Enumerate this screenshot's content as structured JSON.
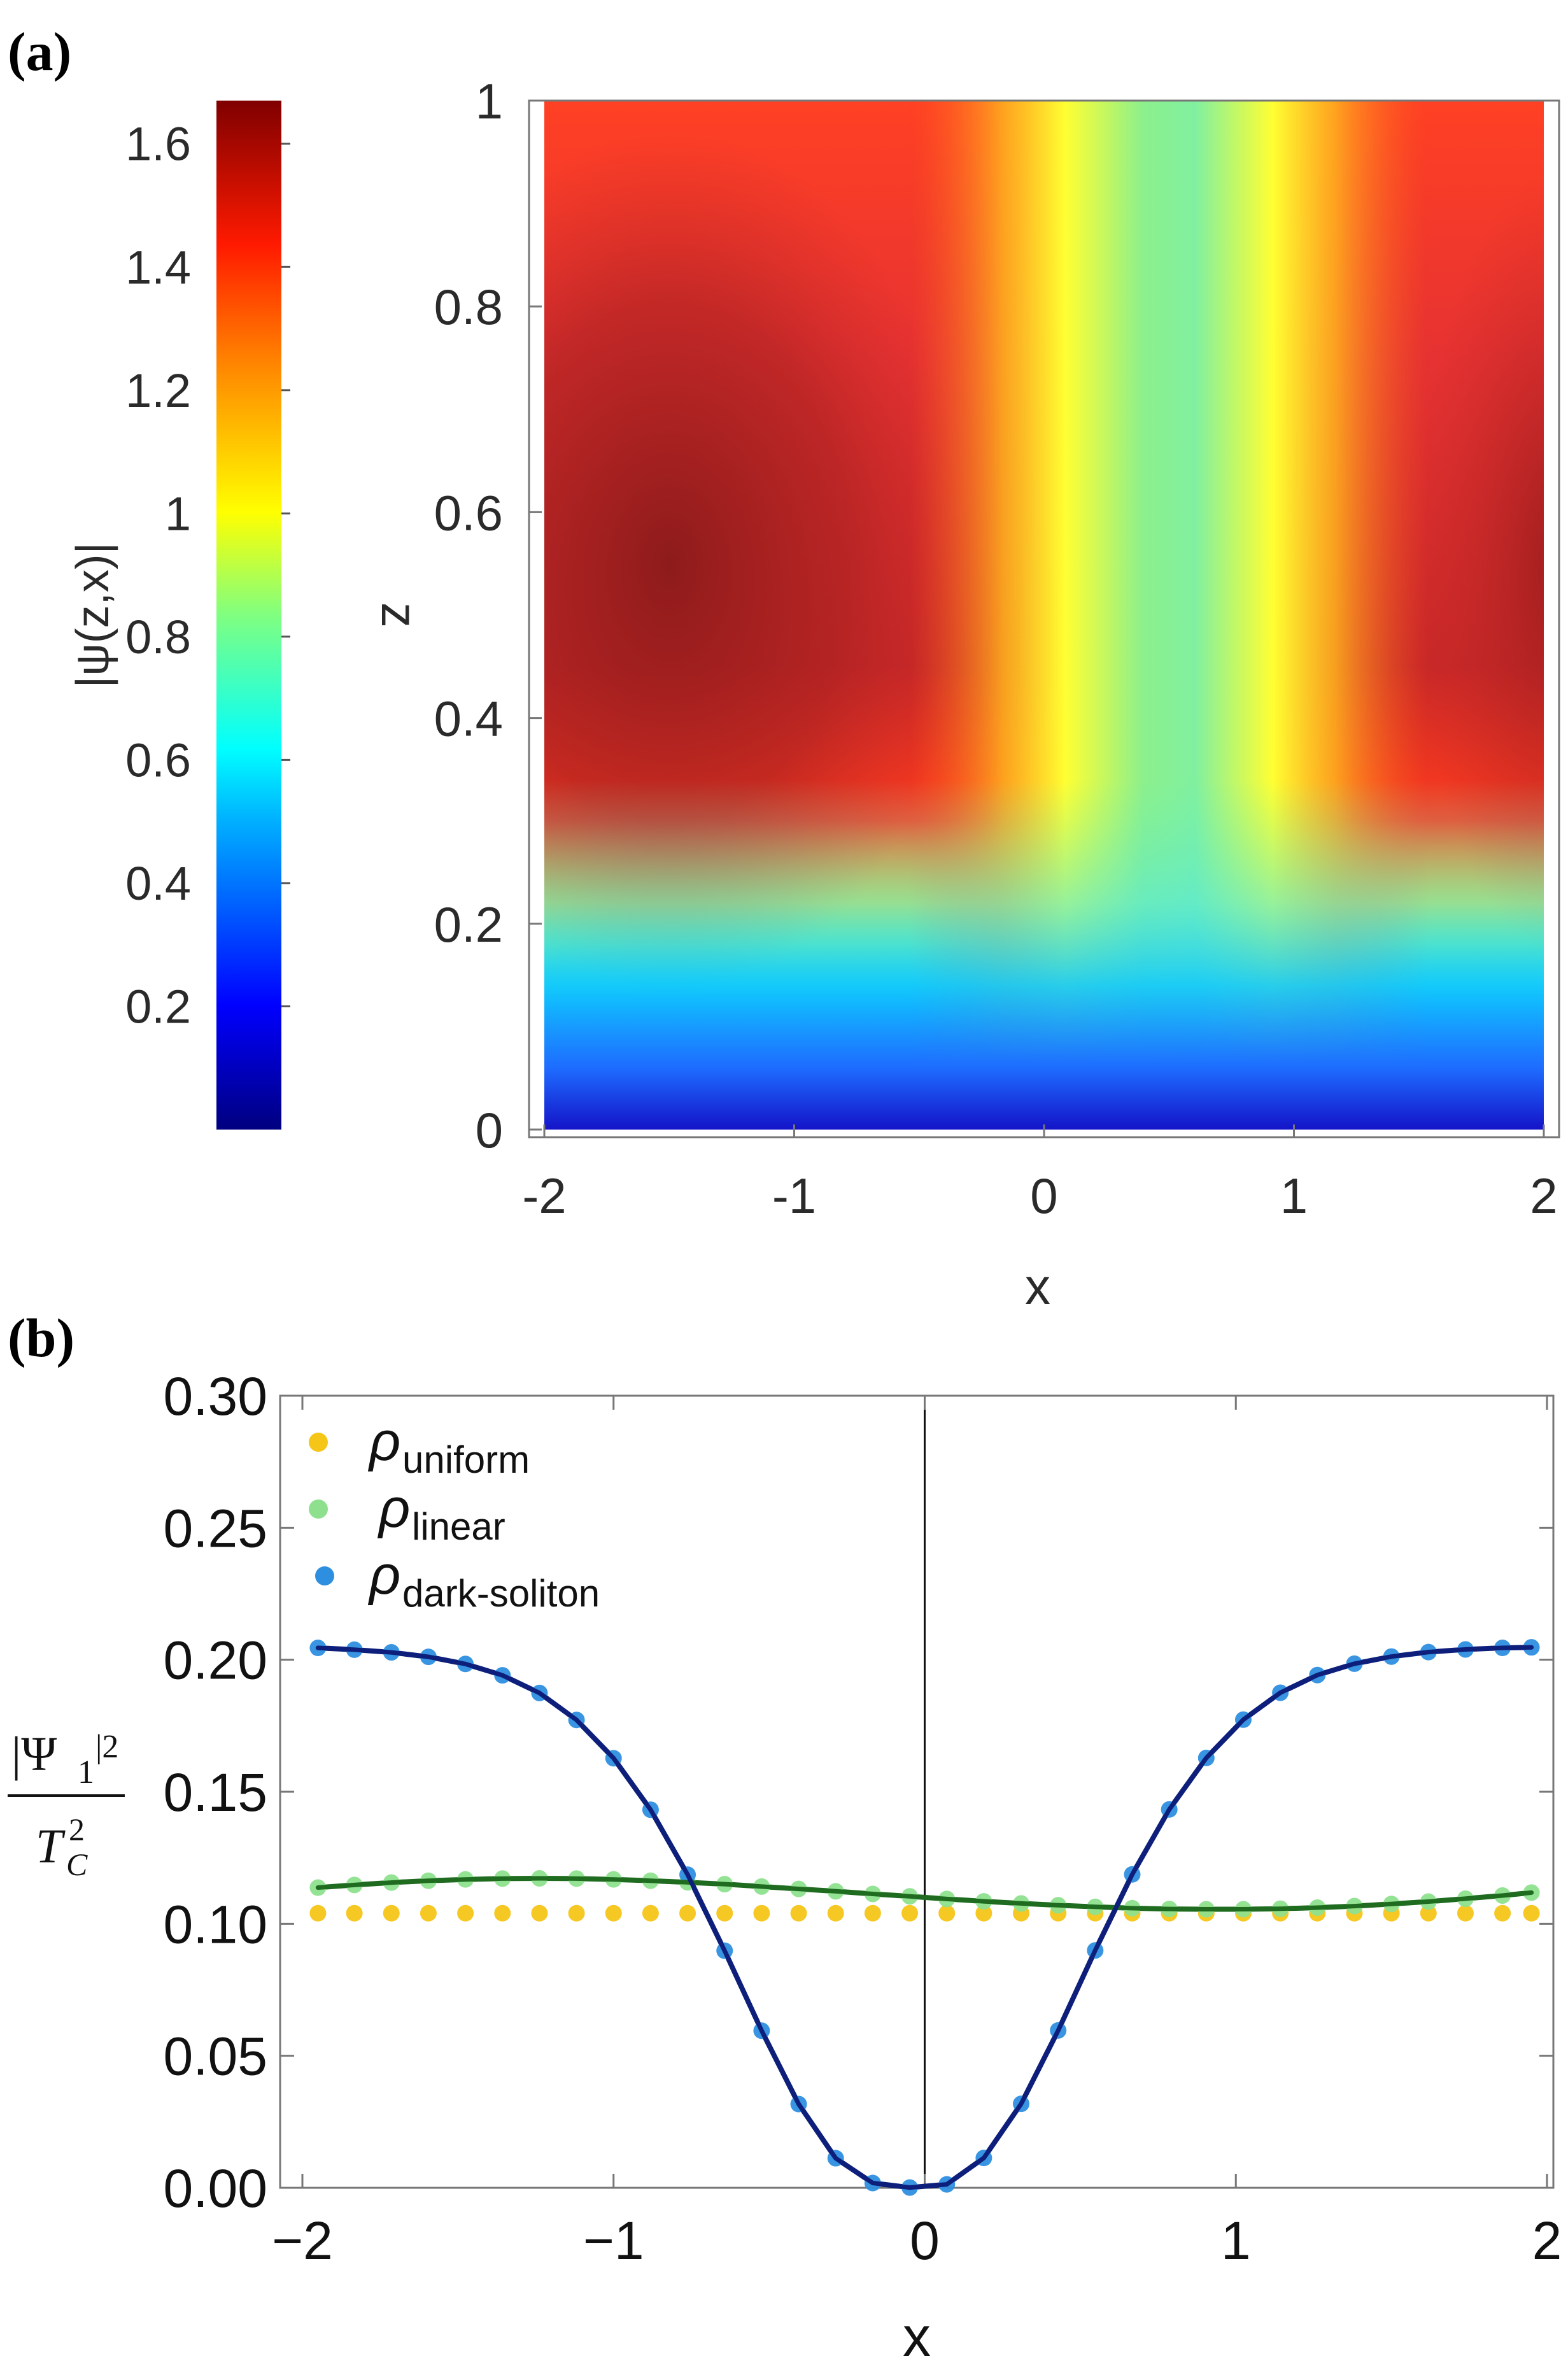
{
  "panel_a": {
    "label": "(a)",
    "chart_data": {
      "type": "heatmap",
      "title": "",
      "xlabel": "x",
      "ylabel": "z",
      "xlim": [
        -2,
        2
      ],
      "ylim": [
        0,
        1
      ],
      "x_ticks": [
        "-2",
        "-1",
        "0",
        "1",
        "2"
      ],
      "y_ticks": [
        "0",
        "0.2",
        "0.4",
        "0.6",
        "0.8",
        "1"
      ],
      "colorbar": {
        "label": "|ψ(z,x)|",
        "range": [
          0,
          1.67
        ],
        "ticks": [
          "0.2",
          "0.4",
          "0.6",
          "0.8",
          "1",
          "1.2",
          "1.4",
          "1.6"
        ]
      },
      "description_values": {
        "max_value": 1.67,
        "max_location": {
          "x": -1.5,
          "z": 0.55
        },
        "trough_center_x": 0.5
      }
    }
  },
  "panel_b": {
    "label": "(b)",
    "chart_data": {
      "type": "scatter",
      "title": "",
      "xlabel": "x",
      "ylabel_numerator": "|Ψ",
      "ylabel_numerator_sub": "1",
      "ylabel_numerator_sup": "|2",
      "ylabel_denominator": "T",
      "ylabel_denominator_sub": "C",
      "ylabel_denominator_sup": "2",
      "xlim": [
        -2,
        2
      ],
      "ylim": [
        0,
        0.3
      ],
      "x_ticks": [
        "−2",
        "−1",
        "0",
        "1",
        "2"
      ],
      "y_ticks": [
        "0.00",
        "0.05",
        "0.10",
        "0.15",
        "0.20",
        "0.25",
        "0.30"
      ],
      "legend": [
        {
          "symbol": "ρ",
          "sub": "uniform",
          "color": "#f5c518"
        },
        {
          "symbol": "ρ",
          "sub": "linear",
          "color": "#8ee08e"
        },
        {
          "symbol": "ρ",
          "sub": "dark-soliton",
          "color": "#2e8fe0"
        }
      ],
      "series": [
        {
          "name": "uniform",
          "points_color": "#f5c518",
          "line": false,
          "x": [
            -1.95,
            -1.833,
            -1.714,
            -1.595,
            -1.476,
            -1.357,
            -1.238,
            -1.119,
            -1.0,
            -0.881,
            -0.762,
            -0.643,
            -0.524,
            -0.405,
            -0.286,
            -0.167,
            -0.048,
            0.071,
            0.19,
            0.31,
            0.429,
            0.548,
            0.667,
            0.786,
            0.905,
            1.024,
            1.143,
            1.262,
            1.381,
            1.5,
            1.619,
            1.738,
            1.857,
            1.95
          ],
          "y": [
            0.104,
            0.104,
            0.104,
            0.104,
            0.104,
            0.104,
            0.104,
            0.104,
            0.104,
            0.104,
            0.104,
            0.104,
            0.104,
            0.104,
            0.104,
            0.104,
            0.104,
            0.104,
            0.104,
            0.104,
            0.104,
            0.104,
            0.104,
            0.104,
            0.104,
            0.104,
            0.104,
            0.104,
            0.104,
            0.104,
            0.104,
            0.104,
            0.104,
            0.104
          ]
        },
        {
          "name": "linear",
          "points_color": "#8ee08e",
          "line_color": "#1f6b1f",
          "x": [
            -1.95,
            -1.833,
            -1.714,
            -1.595,
            -1.476,
            -1.357,
            -1.238,
            -1.119,
            -1.0,
            -0.881,
            -0.762,
            -0.643,
            -0.524,
            -0.405,
            -0.286,
            -0.167,
            -0.048,
            0.071,
            0.19,
            0.31,
            0.429,
            0.548,
            0.667,
            0.786,
            0.905,
            1.024,
            1.143,
            1.262,
            1.381,
            1.5,
            1.619,
            1.738,
            1.857,
            1.95
          ],
          "y": [
            0.1137,
            0.1147,
            0.1156,
            0.1163,
            0.1168,
            0.1171,
            0.1172,
            0.1171,
            0.1168,
            0.1163,
            0.1157,
            0.115,
            0.1141,
            0.1132,
            0.1123,
            0.1113,
            0.1104,
            0.1094,
            0.1085,
            0.1077,
            0.107,
            0.1064,
            0.1059,
            0.1056,
            0.1055,
            0.1055,
            0.1057,
            0.1061,
            0.1067,
            0.1075,
            0.1084,
            0.1095,
            0.1107,
            0.1118
          ]
        },
        {
          "name": "dark-soliton",
          "points_color": "#2e8fe0",
          "line_color": "#0d1f7a",
          "x": [
            -1.95,
            -1.833,
            -1.714,
            -1.595,
            -1.476,
            -1.357,
            -1.238,
            -1.119,
            -1.0,
            -0.881,
            -0.762,
            -0.643,
            -0.524,
            -0.405,
            -0.286,
            -0.167,
            -0.048,
            0.071,
            0.19,
            0.31,
            0.429,
            0.548,
            0.667,
            0.786,
            0.905,
            1.024,
            1.143,
            1.262,
            1.381,
            1.5,
            1.619,
            1.738,
            1.857,
            1.95
          ],
          "y": [
            0.2045,
            0.2038,
            0.2028,
            0.2011,
            0.1984,
            0.1941,
            0.1874,
            0.1772,
            0.1627,
            0.1432,
            0.1186,
            0.0898,
            0.0595,
            0.0317,
            0.0112,
            0.0018,
            0.0001,
            0.0013,
            0.0113,
            0.0318,
            0.0596,
            0.0899,
            0.1187,
            0.1433,
            0.1628,
            0.1773,
            0.1875,
            0.1942,
            0.1985,
            0.2012,
            0.2029,
            0.2039,
            0.2045,
            0.2047
          ]
        }
      ]
    }
  }
}
